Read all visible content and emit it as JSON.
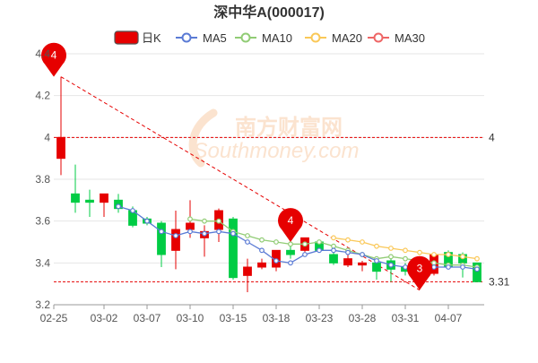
{
  "chart_data": {
    "type": "candlestick",
    "title": "深中华A(000017)",
    "legend": {
      "placement": "top-center",
      "items": [
        {
          "key": "kline",
          "label": "日K",
          "color": "#e60000"
        },
        {
          "key": "ma5",
          "label": "MA5",
          "color": "#5b7bd5"
        },
        {
          "key": "ma10",
          "label": "MA10",
          "color": "#91cc75"
        },
        {
          "key": "ma20",
          "label": "MA20",
          "color": "#fac858"
        },
        {
          "key": "ma30",
          "label": "MA30",
          "color": "#ee6666"
        }
      ]
    },
    "ylim": [
      3.2,
      4.4
    ],
    "yticks": [
      "3.2",
      "3.4",
      "3.6",
      "3.8",
      "4",
      "4.2",
      "4.4"
    ],
    "xticks": [
      "02-25",
      "03-02",
      "03-07",
      "03-10",
      "03-15",
      "03-18",
      "03-23",
      "03-28",
      "03-31",
      "04-07"
    ],
    "up_color": "#e60000",
    "down_color": "#00cc44",
    "grid": true,
    "candles": [
      {
        "o": 3.9,
        "c": 4.0,
        "h": 4.29,
        "l": 3.82
      },
      {
        "o": 3.73,
        "c": 3.69,
        "h": 3.87,
        "l": 3.64
      },
      {
        "o": 3.7,
        "c": 3.69,
        "h": 3.75,
        "l": 3.62
      },
      {
        "o": 3.69,
        "c": 3.73,
        "h": 3.73,
        "l": 3.62
      },
      {
        "o": 3.7,
        "c": 3.66,
        "h": 3.73,
        "l": 3.64
      },
      {
        "o": 3.65,
        "c": 3.58,
        "h": 3.67,
        "l": 3.57
      },
      {
        "o": 3.61,
        "c": 3.59,
        "h": 3.62,
        "l": 3.58
      },
      {
        "o": 3.59,
        "c": 3.44,
        "h": 3.6,
        "l": 3.38
      },
      {
        "o": 3.46,
        "c": 3.56,
        "h": 3.65,
        "l": 3.37
      },
      {
        "o": 3.56,
        "c": 3.59,
        "h": 3.7,
        "l": 3.52
      },
      {
        "o": 3.52,
        "c": 3.55,
        "h": 3.58,
        "l": 3.43
      },
      {
        "o": 3.56,
        "c": 3.65,
        "h": 3.66,
        "l": 3.5
      },
      {
        "o": 3.61,
        "c": 3.33,
        "h": 3.62,
        "l": 3.32
      },
      {
        "o": 3.34,
        "c": 3.38,
        "h": 3.42,
        "l": 3.26
      },
      {
        "o": 3.38,
        "c": 3.4,
        "h": 3.42,
        "l": 3.37
      },
      {
        "o": 3.38,
        "c": 3.46,
        "h": 3.46,
        "l": 3.36
      },
      {
        "o": 3.46,
        "c": 3.44,
        "h": 3.48,
        "l": 3.42
      },
      {
        "o": 3.46,
        "c": 3.52,
        "h": 3.52,
        "l": 3.45
      },
      {
        "o": 3.5,
        "c": 3.46,
        "h": 3.51,
        "l": 3.45
      },
      {
        "o": 3.44,
        "c": 3.4,
        "h": 3.47,
        "l": 3.39
      },
      {
        "o": 3.39,
        "c": 3.42,
        "h": 3.44,
        "l": 3.38
      },
      {
        "o": 3.39,
        "c": 3.4,
        "h": 3.41,
        "l": 3.36
      },
      {
        "o": 3.4,
        "c": 3.36,
        "h": 3.41,
        "l": 3.32
      },
      {
        "o": 3.41,
        "c": 3.37,
        "h": 3.42,
        "l": 3.31
      },
      {
        "o": 3.38,
        "c": 3.36,
        "h": 3.4,
        "l": 3.34
      },
      {
        "o": 3.36,
        "c": 3.35,
        "h": 3.37,
        "l": 3.29
      },
      {
        "o": 3.35,
        "c": 3.44,
        "h": 3.45,
        "l": 3.34
      },
      {
        "o": 3.45,
        "c": 3.38,
        "h": 3.46,
        "l": 3.37
      },
      {
        "o": 3.44,
        "c": 3.4,
        "h": 3.45,
        "l": 3.33
      },
      {
        "o": 3.4,
        "c": 3.31,
        "h": 3.4,
        "l": 3.31
      }
    ],
    "ma5": [
      null,
      null,
      null,
      null,
      3.67,
      3.65,
      3.6,
      3.55,
      3.53,
      3.55,
      3.54,
      3.55,
      3.54,
      3.5,
      3.46,
      3.41,
      3.4,
      3.44,
      3.46,
      3.46,
      3.45,
      3.44,
      3.41,
      3.39,
      3.38,
      3.37,
      3.38,
      3.38,
      3.38,
      3.37
    ],
    "ma10": [
      null,
      null,
      null,
      null,
      null,
      null,
      null,
      null,
      null,
      3.61,
      3.6,
      3.6,
      3.55,
      3.53,
      3.51,
      3.5,
      3.49,
      3.49,
      3.5,
      3.48,
      3.46,
      3.44,
      3.42,
      3.43,
      3.42,
      3.41,
      3.4,
      3.39,
      3.39,
      3.38
    ],
    "ma20": [
      null,
      null,
      null,
      null,
      null,
      null,
      null,
      null,
      null,
      null,
      null,
      null,
      null,
      null,
      null,
      null,
      null,
      null,
      null,
      3.52,
      3.51,
      3.5,
      3.48,
      3.47,
      3.46,
      3.45,
      3.44,
      3.44,
      3.43,
      3.42
    ],
    "ma30": [],
    "reference_lines": [
      {
        "label": "4",
        "value": 4.0,
        "side": "right"
      },
      {
        "label": "3.31",
        "value": 3.31,
        "side": "right"
      }
    ],
    "markers": [
      {
        "label": "4",
        "index": 0,
        "value": 4.29
      },
      {
        "label": "4",
        "index": 16,
        "value": 3.5
      },
      {
        "label": "3",
        "index": 25,
        "value": 3.27
      }
    ],
    "trend_line": {
      "from_index": 0,
      "from_value": 4.29,
      "to_index": 25,
      "to_value": 3.27
    },
    "watermark": {
      "text_cn": "南方财富网",
      "text_en": "Southmoney.com"
    }
  }
}
